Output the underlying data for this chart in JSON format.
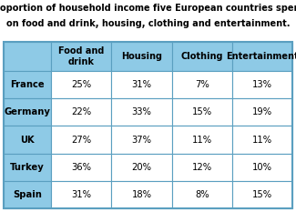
{
  "title_line1": "Proportion of household income five European countries spend",
  "title_line2": "on food and drink, housing, clothing and entertainment.",
  "columns": [
    "Food and\ndrink",
    "Housing",
    "Clothing",
    "Entertainment"
  ],
  "rows": [
    "France",
    "Germany",
    "UK",
    "Turkey",
    "Spain"
  ],
  "data": [
    [
      "25%",
      "31%",
      "7%",
      "13%"
    ],
    [
      "22%",
      "33%",
      "15%",
      "19%"
    ],
    [
      "27%",
      "37%",
      "11%",
      "11%"
    ],
    [
      "36%",
      "20%",
      "12%",
      "10%"
    ],
    [
      "31%",
      "18%",
      "8%",
      "15%"
    ]
  ],
  "header_bg": "#8ecae6",
  "row_label_bg": "#8ecae6",
  "cell_bg": "#ffffff",
  "grid_color": "#5a9fc0",
  "title_fontsize": 7.0,
  "header_fontsize": 7.0,
  "cell_fontsize": 7.2,
  "row_label_fontsize": 7.2
}
